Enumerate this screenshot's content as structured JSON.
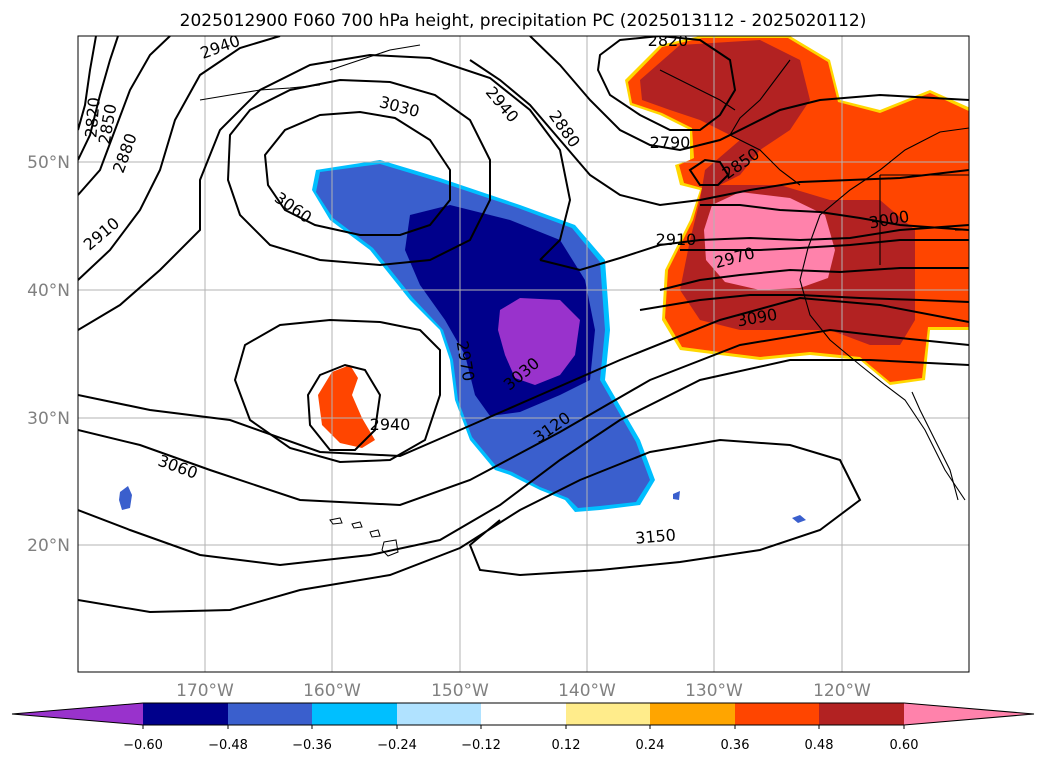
{
  "map": {
    "title": "2025012900 F060 700 hPa height, precipitation PC (2025013112 - 2025020112)",
    "lat_labels": [
      "50°N",
      "40°N",
      "30°N",
      "20°N"
    ],
    "lon_labels": [
      "170°W",
      "160°W",
      "150°W",
      "140°W",
      "130°W",
      "120°W"
    ],
    "contour_labels": [
      "2940",
      "3030",
      "2940",
      "2880",
      "2820",
      "2790",
      "2850",
      "2910",
      "2970",
      "3000",
      "3090",
      "2820",
      "2850",
      "2880",
      "3060",
      "2910",
      "3060",
      "2970",
      "2940",
      "3030",
      "3120",
      "3060",
      "3150"
    ],
    "fill_colors": {
      "neg_high": "#9932cc",
      "neg_mid": "#00008b",
      "neg_low": "#3a5fcd",
      "pos_low": "#ff4500",
      "pos_mid": "#b22222",
      "pos_high": "#ff82ab"
    }
  },
  "colorbar": {
    "ticks": [
      "−0.60",
      "−0.48",
      "−0.36",
      "−0.24",
      "−0.12",
      "0.12",
      "0.24",
      "0.36",
      "0.48",
      "0.60"
    ],
    "colors": [
      "#9932cc",
      "#00008b",
      "#3a5fcd",
      "#00bfff",
      "#b0e2ff",
      "#ffffff",
      "#ffec8b",
      "#ffa500",
      "#ff4500",
      "#b22222",
      "#ff82ab"
    ]
  }
}
